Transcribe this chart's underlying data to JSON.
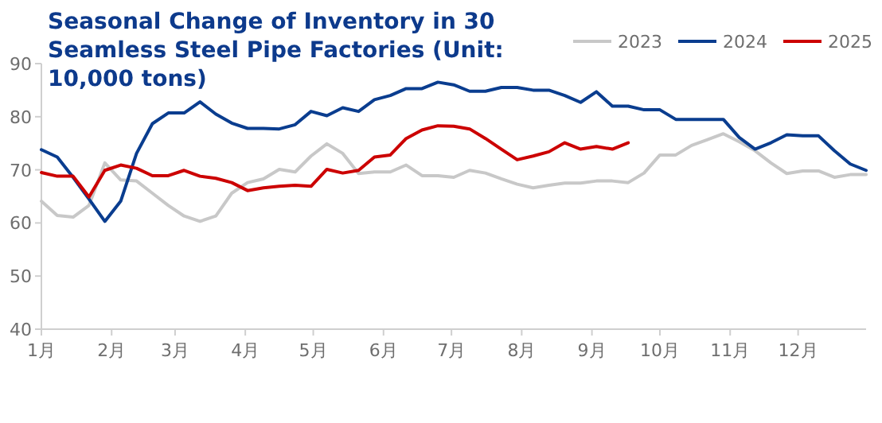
{
  "chart_data": {
    "type": "line",
    "title": "Seasonal Change of Inventory in 30 Seamless Steel Pipe Factories (Unit: 10,000 tons)",
    "x": [
      "--01-01",
      "--01-08",
      "--01-15",
      "--01-22",
      "--01-29",
      "--02-05",
      "--02-12",
      "--02-19",
      "--02-26",
      "--03-05",
      "--03-12",
      "--03-19",
      "--03-26",
      "--04-02",
      "--04-09",
      "--04-16",
      "--04-23",
      "--04-30",
      "--05-07",
      "--05-14",
      "--05-21",
      "--05-28",
      "--06-04",
      "--06-11",
      "--06-18",
      "--06-25",
      "--07-02",
      "--07-09",
      "--07-16",
      "--07-23",
      "--07-30",
      "--08-06",
      "--08-13",
      "--08-20",
      "--08-27",
      "--09-03",
      "--09-10",
      "--09-17",
      "--09-24",
      "--10-01",
      "--10-08",
      "--10-15",
      "--10-22",
      "--10-29",
      "--11-05",
      "--11-12",
      "--11-19",
      "--11-26",
      "--12-03",
      "--12-10",
      "--12-17",
      "--12-24",
      "--12-31"
    ],
    "series": [
      {
        "name": "2023",
        "color": "#c8c8c8",
        "values": [
          64.1,
          61.4,
          61.1,
          63.3,
          71.3,
          68.1,
          67.9,
          65.6,
          63.3,
          61.3,
          60.3,
          61.3,
          65.6,
          67.6,
          68.3,
          70.1,
          69.6,
          72.6,
          74.9,
          73.1,
          69.3,
          69.6,
          69.6,
          70.9,
          68.9,
          68.9,
          68.6,
          69.9,
          69.4,
          68.3,
          67.3,
          66.6,
          67.1,
          67.5,
          67.5,
          67.9,
          67.9,
          67.6,
          69.4,
          72.8,
          72.8,
          74.6,
          75.7,
          76.8,
          75.3,
          73.6,
          71.3,
          69.3,
          69.8,
          69.8,
          68.6,
          69.1,
          69.1
        ]
      },
      {
        "name": "2024",
        "color": "#0a3d8f",
        "values": [
          73.8,
          72.4,
          68.6,
          64.5,
          60.3,
          64.1,
          73.1,
          78.7,
          80.7,
          80.7,
          82.8,
          80.5,
          78.8,
          77.8,
          77.8,
          77.7,
          78.5,
          81.0,
          80.2,
          81.7,
          81.0,
          83.2,
          84.0,
          85.3,
          85.3,
          86.5,
          86.0,
          84.8,
          84.8,
          85.5,
          85.5,
          85.0,
          85.0,
          84.0,
          82.7,
          84.7,
          82.0,
          82.0,
          81.3,
          81.3,
          79.5,
          79.5,
          79.5,
          79.5,
          76.1,
          73.9,
          75.1,
          76.6,
          76.4,
          76.4,
          73.6,
          71.1,
          69.9
        ]
      },
      {
        "name": "2025",
        "color": "#cc0000",
        "values": [
          69.5,
          68.8,
          68.8,
          64.9,
          69.9,
          70.9,
          70.3,
          68.9,
          68.9,
          69.9,
          68.8,
          68.4,
          67.6,
          66.1,
          66.6,
          66.9,
          67.1,
          66.9,
          70.1,
          69.4,
          69.9,
          72.4,
          72.8,
          75.9,
          77.5,
          78.3,
          78.2,
          77.7,
          75.9,
          73.9,
          71.9,
          72.6,
          73.4,
          75.1,
          73.9,
          74.4,
          73.9,
          75.1,
          null,
          null,
          null,
          null,
          null,
          null,
          null,
          null,
          null,
          null,
          null,
          null,
          null,
          null,
          null
        ]
      }
    ],
    "xlim": [
      "--01-01",
      "--12-31"
    ],
    "xticks": [
      {
        "value": "--01-01",
        "label": "1月"
      },
      {
        "value": "--02-01",
        "label": "2月"
      },
      {
        "value": "--03-01",
        "label": "3月"
      },
      {
        "value": "--04-01",
        "label": "4月"
      },
      {
        "value": "--05-01",
        "label": "5月"
      },
      {
        "value": "--06-01",
        "label": "6月"
      },
      {
        "value": "--07-01",
        "label": "7月"
      },
      {
        "value": "--08-01",
        "label": "8月"
      },
      {
        "value": "--09-01",
        "label": "9月"
      },
      {
        "value": "--10-01",
        "label": "10月"
      },
      {
        "value": "--11-01",
        "label": "11月"
      },
      {
        "value": "--12-01",
        "label": "12月"
      }
    ],
    "ylim": [
      40,
      90
    ],
    "yticks": [
      40,
      50,
      60,
      70,
      80,
      90
    ],
    "grid": false,
    "legend": "top right",
    "marker": "none",
    "line_style": "solid"
  }
}
